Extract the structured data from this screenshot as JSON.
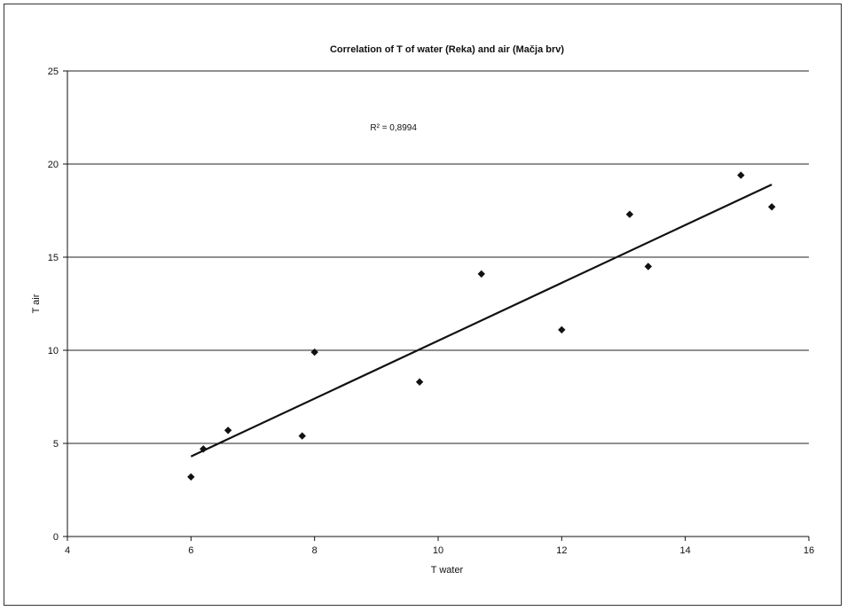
{
  "chart_data": {
    "type": "scatter",
    "title": "Correlation of T of water (Reka) and air (Mačja brv)",
    "xlabel": "T water",
    "ylabel": "T air",
    "xlim": [
      4,
      16
    ],
    "ylim": [
      0,
      25
    ],
    "xticks": [
      "4",
      "6",
      "8",
      "10",
      "12",
      "14",
      "16"
    ],
    "yticks": [
      "0",
      "5",
      "10",
      "15",
      "20",
      "25"
    ],
    "grid": "horizontal",
    "annotation": "R² = 0,8994",
    "points": [
      {
        "x": 6.0,
        "y": 3.2
      },
      {
        "x": 6.2,
        "y": 4.7
      },
      {
        "x": 6.6,
        "y": 5.7
      },
      {
        "x": 7.8,
        "y": 5.4
      },
      {
        "x": 8.0,
        "y": 9.9
      },
      {
        "x": 9.7,
        "y": 8.3
      },
      {
        "x": 10.7,
        "y": 14.1
      },
      {
        "x": 12.0,
        "y": 11.1
      },
      {
        "x": 13.1,
        "y": 17.3
      },
      {
        "x": 13.4,
        "y": 14.5
      },
      {
        "x": 14.9,
        "y": 19.4
      },
      {
        "x": 15.4,
        "y": 17.7
      }
    ],
    "trendline": {
      "type": "linear",
      "x": [
        6.0,
        15.4
      ],
      "y": [
        4.3,
        18.9
      ]
    },
    "colors": {
      "points": "#111111",
      "line": "#111111",
      "grid": "#222222"
    }
  }
}
